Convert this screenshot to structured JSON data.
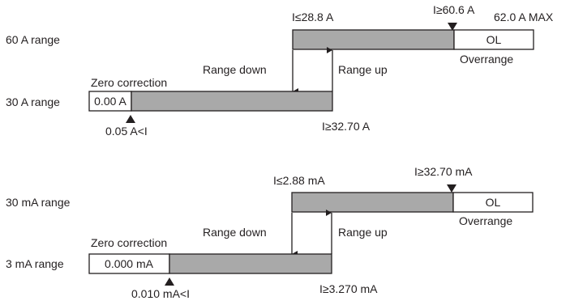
{
  "colors": {
    "bar_fill": "#a9a9a9",
    "box_fill": "#ffffff",
    "stroke": "#231f20",
    "text": "#231f20"
  },
  "amp_diagram": {
    "high_range": {
      "label": "60 A range",
      "down_threshold": "I≤28.8 A",
      "up_threshold": "I≥60.6 A",
      "max_label": "62.0 A MAX",
      "ol_label": "OL",
      "overrange_label": "Overrange"
    },
    "transitions": {
      "down_label": "Range down",
      "up_label": "Range up"
    },
    "low_range": {
      "label": "30 A range",
      "zero_correction_label": "Zero correction",
      "zero_value": "0.00 A",
      "zero_threshold": "0.05 A<I",
      "up_threshold": "I≥32.70 A"
    }
  },
  "milliamp_diagram": {
    "high_range": {
      "label": "30 mA range",
      "down_threshold": "I≤2.88 mA",
      "up_threshold": "I≥32.70 mA",
      "ol_label": "OL",
      "overrange_label": "Overrange"
    },
    "transitions": {
      "down_label": "Range down",
      "up_label": "Range up"
    },
    "low_range": {
      "label": "3 mA range",
      "zero_correction_label": "Zero correction",
      "zero_value": "0.000 mA",
      "zero_threshold": "0.010 mA<I",
      "up_threshold": "I≥3.270 mA"
    }
  }
}
